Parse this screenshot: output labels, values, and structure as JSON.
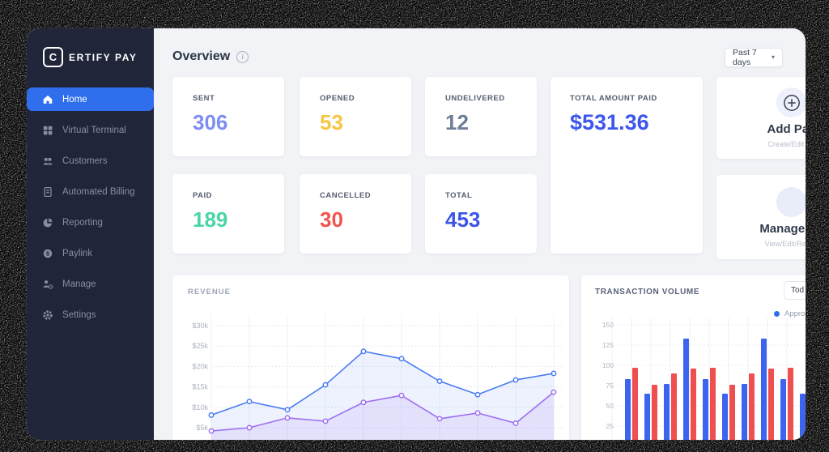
{
  "brand": {
    "initial": "C",
    "rest": "ERTIFY PAY"
  },
  "sidebar": {
    "items": [
      {
        "label": "Home",
        "icon": "home-icon",
        "active": true
      },
      {
        "label": "Virtual Terminal",
        "icon": "grid-icon",
        "active": false
      },
      {
        "label": "Customers",
        "icon": "users-icon",
        "active": false
      },
      {
        "label": "Automated Billing",
        "icon": "document-icon",
        "active": false
      },
      {
        "label": "Reporting",
        "icon": "pie-chart-icon",
        "active": false
      },
      {
        "label": "Paylink",
        "icon": "dollar-circle-icon",
        "active": false
      },
      {
        "label": "Manage",
        "icon": "user-gear-icon",
        "active": false
      },
      {
        "label": "Settings",
        "icon": "gear-icon",
        "active": false
      }
    ]
  },
  "header": {
    "title": "Overview",
    "info_icon": "info-icon",
    "range_selector": {
      "label": "Past 7 days",
      "caret_icon": "chevron-down-icon"
    }
  },
  "stats": {
    "cards": [
      {
        "label": "SENT",
        "value": "306",
        "color": "#7e8ef0"
      },
      {
        "label": "OPENED",
        "value": "53",
        "color": "#f6c544"
      },
      {
        "label": "UNDELIVERED",
        "value": "12",
        "color": "#6f7e98"
      },
      {
        "label": "PAID",
        "value": "189",
        "color": "#49d6a4"
      },
      {
        "label": "CANCELLED",
        "value": "30",
        "color": "#f2544e"
      },
      {
        "label": "TOTAL",
        "value": "453",
        "color": "#3c55e8"
      }
    ]
  },
  "total_amount_card": {
    "label": "TOTAL AMOUNT PAID",
    "value": "$531.36",
    "color": "#3d56ee"
  },
  "action_cards": [
    {
      "title": "Add Pay",
      "subtitle": "Create/Edit Pa",
      "icon": "circle-plus-icon"
    },
    {
      "title": "Manage Pa",
      "subtitle": "View/Edit/Resen",
      "icon": "circle-icon"
    }
  ],
  "chart_data": [
    {
      "type": "line",
      "title": "REVENUE",
      "y_tick_labels": [
        "$30k",
        "$25k",
        "$20k",
        "$15k",
        "$10k",
        "$5k"
      ],
      "y_ticks_k": [
        30,
        25,
        20,
        15,
        10,
        5
      ],
      "ylim_k": [
        0,
        30
      ],
      "grid": true,
      "x_labels_visible": false,
      "series": [
        {
          "name": "revenue-primary",
          "color": "#4c7cf2",
          "values_k": [
            8.1,
            11.4,
            9.4,
            15.5,
            23.7,
            21.9,
            16.4,
            13.1,
            16.7,
            18.3
          ]
        },
        {
          "name": "revenue-secondary",
          "color": "#9d6ff0",
          "values_k": [
            4.2,
            5.0,
            7.4,
            6.6,
            11.2,
            12.9,
            7.2,
            8.6,
            6.1,
            13.7
          ]
        }
      ]
    },
    {
      "type": "bar",
      "title": "TRANSACTION VOLUME",
      "filter_label": "Tod",
      "legend": [
        {
          "label": "Appro",
          "color": "#2f6fee"
        }
      ],
      "y_ticks": [
        150,
        125,
        100,
        75,
        50,
        25
      ],
      "ylim": [
        0,
        150
      ],
      "grid": true,
      "series": [
        {
          "name": "volume-blue",
          "color": "#3c64ee",
          "values": [
            83,
            65,
            77,
            133,
            83,
            65,
            77,
            133,
            83,
            65
          ]
        },
        {
          "name": "volume-red",
          "color": "#ef4f4e",
          "values": [
            97,
            76,
            90,
            96,
            97,
            76,
            90,
            96,
            97
          ]
        }
      ]
    }
  ]
}
